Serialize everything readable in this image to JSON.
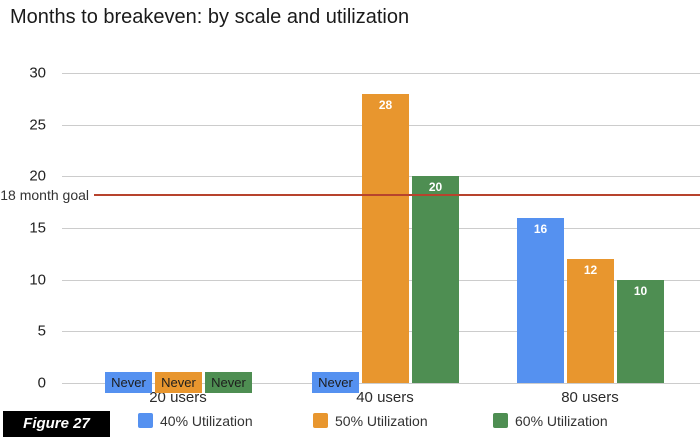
{
  "title": "Months to breakeven: by scale and utilization",
  "figure_label": "Figure 27",
  "goal_line": {
    "label": "18 month goal",
    "value": 18,
    "color": "#b7432d"
  },
  "never_label": "Never",
  "chart_data": {
    "type": "bar",
    "title": "Months to breakeven: by scale and utilization",
    "categories": [
      "20 users",
      "40 users",
      "80 users"
    ],
    "series": [
      {
        "name": "40% Utilization",
        "color": "#5591f0",
        "values": [
          "Never",
          "Never",
          16
        ]
      },
      {
        "name": "50% Utilization",
        "color": "#e8962e",
        "values": [
          "Never",
          28,
          12
        ]
      },
      {
        "name": "60% Utilization",
        "color": "#4e8e52",
        "values": [
          "Never",
          20,
          10
        ]
      }
    ],
    "ylabel": "",
    "xlabel": "",
    "ylim": [
      0,
      30
    ],
    "yticks": [
      0,
      5,
      10,
      15,
      20,
      25,
      30
    ],
    "grid": true,
    "legend_position": "bottom",
    "annotations": [
      {
        "type": "hline",
        "y": 18,
        "label": "18 month goal",
        "color": "#b7432d"
      }
    ]
  }
}
